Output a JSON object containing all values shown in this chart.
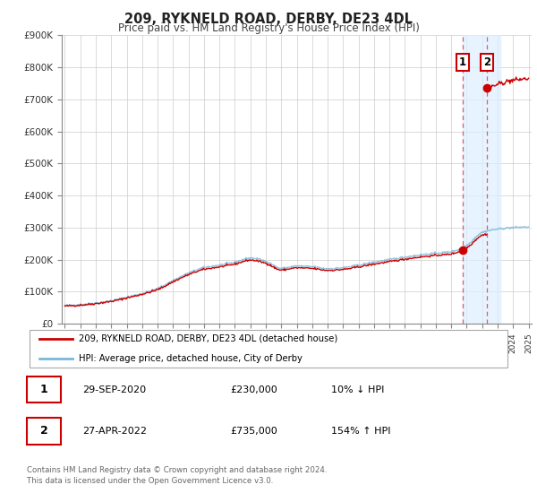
{
  "title": "209, RYKNELD ROAD, DERBY, DE23 4DL",
  "subtitle": "Price paid vs. HM Land Registry's House Price Index (HPI)",
  "legend_line1": "209, RYKNELD ROAD, DERBY, DE23 4DL (detached house)",
  "legend_line2": "HPI: Average price, detached house, City of Derby",
  "annotation1_date": "29-SEP-2020",
  "annotation1_price": "£230,000",
  "annotation1_hpi": "10% ↓ HPI",
  "annotation2_date": "27-APR-2022",
  "annotation2_price": "£735,000",
  "annotation2_hpi": "154% ↑ HPI",
  "footer_line1": "Contains HM Land Registry data © Crown copyright and database right 2024.",
  "footer_line2": "This data is licensed under the Open Government Licence v3.0.",
  "ylim": [
    0,
    900000
  ],
  "yticks": [
    0,
    100000,
    200000,
    300000,
    400000,
    500000,
    600000,
    700000,
    800000,
    900000
  ],
  "ytick_labels": [
    "£0",
    "£100K",
    "£200K",
    "£300K",
    "£400K",
    "£500K",
    "£600K",
    "£700K",
    "£800K",
    "£900K"
  ],
  "xlim_start": 1994.8,
  "xlim_end": 2025.2,
  "hpi_color": "#7ab8d9",
  "price_color": "#cc0000",
  "marker_color": "#cc0000",
  "bg_color": "#ffffff",
  "grid_color": "#cccccc",
  "sale1_year": 2020.75,
  "sale1_price": 230000,
  "sale2_year": 2022.33,
  "sale2_price": 735000,
  "highlight_color": "#ddeeff",
  "highlight_start": 2020.75,
  "highlight_end": 2023.2
}
